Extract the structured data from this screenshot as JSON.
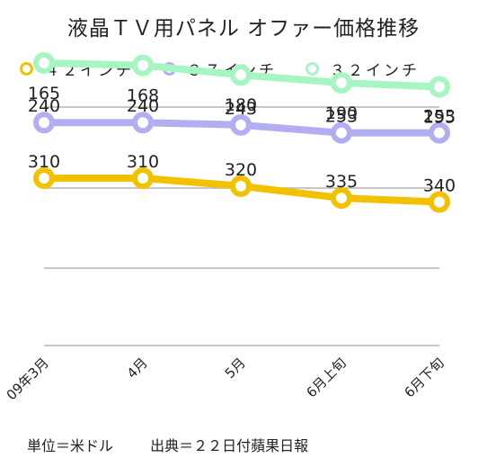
{
  "title": "液晶ＴＶ用パネル オファー価格推移",
  "legend": [
    {
      "label": "４２インチ",
      "color": "#f2c200"
    },
    {
      "label": "３７インチ",
      "color": "#b3aef2"
    },
    {
      "label": "３２インチ",
      "color": "#a8f5c4"
    }
  ],
  "footer": {
    "unit": "単位＝米ドル",
    "source": "出典＝２２日付蘋果日報"
  },
  "chart_data": {
    "type": "line",
    "title": "液晶ＴＶ用パネル オファー価格推移",
    "xlabel": "",
    "ylabel": "",
    "categories": [
      "09年3月",
      "4月",
      "5月",
      "6月上旬",
      "6月下旬"
    ],
    "series": [
      {
        "name": "４２インチ",
        "color": "#f2c200",
        "values": [
          310,
          310,
          320,
          335,
          340
        ]
      },
      {
        "name": "３７インチ",
        "color": "#b3aef2",
        "values": [
          240,
          240,
          243,
          253,
          253
        ]
      },
      {
        "name": "３２インチ",
        "color": "#a8f5c4",
        "values": [
          165,
          168,
          180,
          190,
          195
        ]
      }
    ],
    "grid": "horizontal",
    "legend_position": "top"
  }
}
